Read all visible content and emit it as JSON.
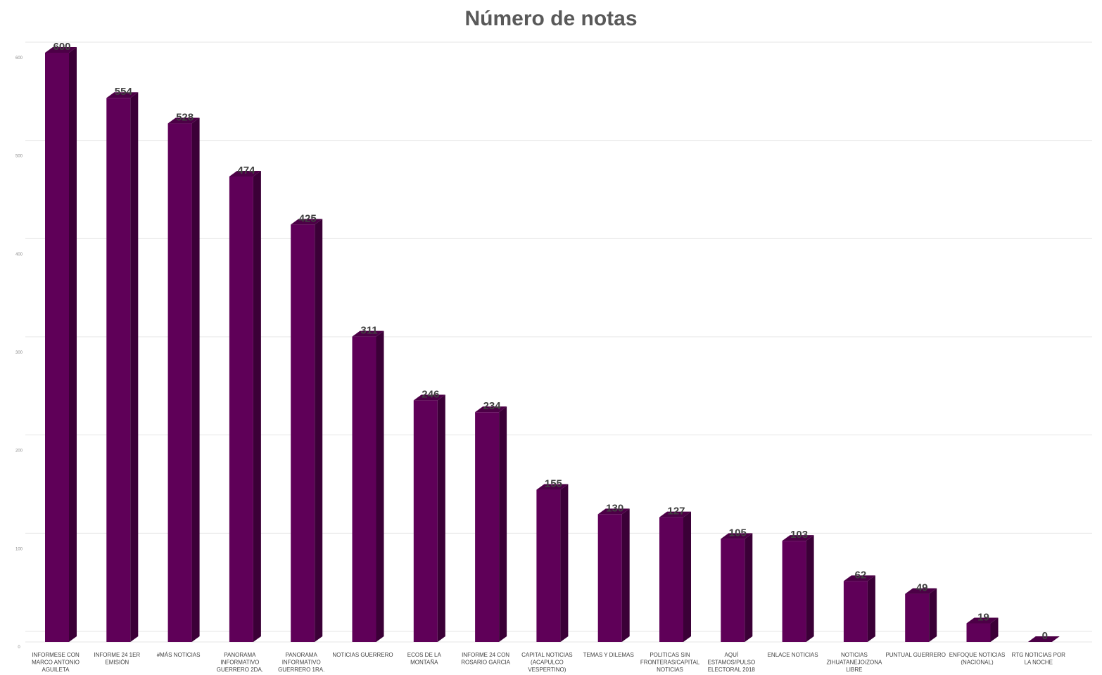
{
  "chart_data": {
    "type": "bar",
    "title": "Número de notas",
    "xlabel": "",
    "ylabel": "",
    "ylim": [
      0,
      600
    ],
    "yticks": [
      0,
      100,
      200,
      300,
      400,
      500,
      600
    ],
    "grid": true,
    "legend": "none",
    "bar_color": "#5f0058",
    "categories": [
      [
        "INFORMESE CON",
        "MARCO ANTONIO",
        "AGUILETA"
      ],
      [
        "INFORME 24 1ER",
        "EMISIÓN"
      ],
      [
        "#MÁS NOTICIAS"
      ],
      [
        "PANORAMA",
        "INFORMATIVO",
        "GUERRERO 2DA."
      ],
      [
        "PANORAMA",
        "INFORMATIVO",
        "GUERRERO 1RA."
      ],
      [
        "NOTICIAS GUERRERO"
      ],
      [
        "ECOS DE LA",
        "MONTAÑA"
      ],
      [
        "INFORME 24 CON",
        "ROSARIO GARCIA"
      ],
      [
        "CAPITAL NOTICIAS",
        "(ACAPULCO",
        "VESPERTINO)"
      ],
      [
        "TEMAS Y DILEMAS"
      ],
      [
        "POLITICAS SIN",
        "FRONTERAS/CAPITAL",
        "NOTICIAS"
      ],
      [
        "AQUÍ",
        "ESTAMOS/PULSO",
        "ELECTORAL 2018"
      ],
      [
        "ENLACE NOTICIAS"
      ],
      [
        "NOTICIAS",
        "ZIHUATANEJO/ZONA",
        "LIBRE"
      ],
      [
        "PUNTUAL GUERRERO"
      ],
      [
        "ENFOQUE NOTICIAS",
        "(NACIONAL)"
      ],
      [
        "RTG NOTICIAS POR",
        "LA NOCHE"
      ]
    ],
    "values": [
      600,
      554,
      528,
      474,
      425,
      311,
      246,
      234,
      155,
      130,
      127,
      105,
      103,
      62,
      49,
      19,
      0
    ]
  }
}
